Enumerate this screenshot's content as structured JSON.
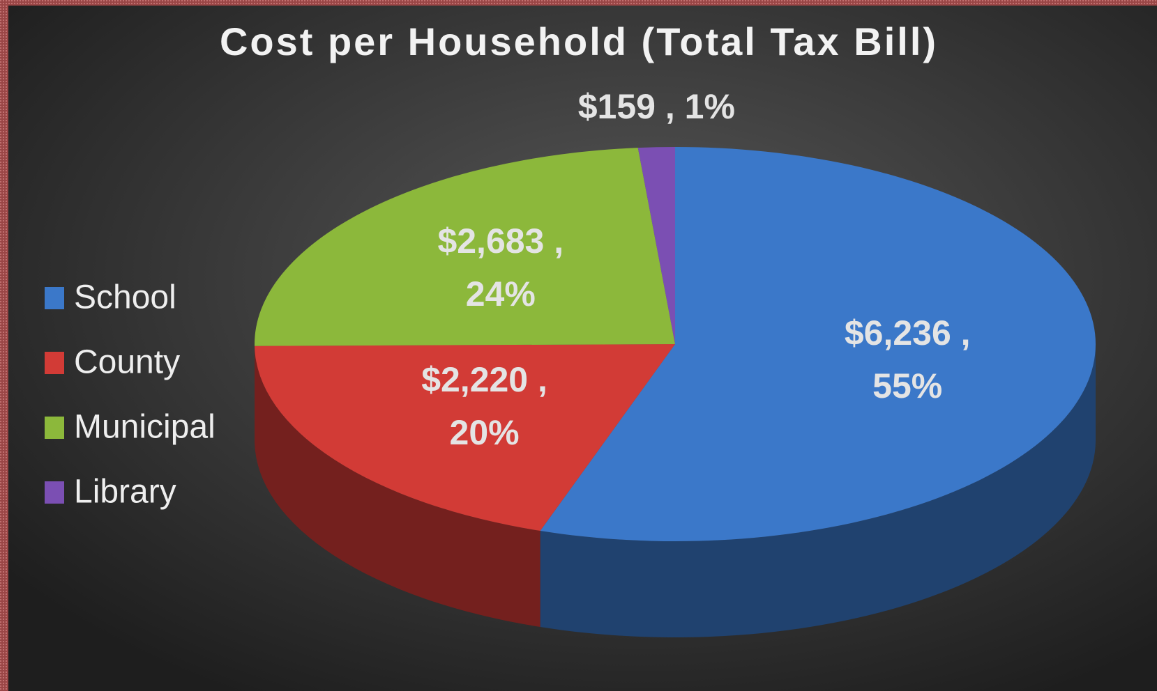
{
  "chart_data": {
    "type": "pie",
    "title": "Cost per Household (Total Tax Bill)",
    "categories": [
      "School",
      "County",
      "Municipal",
      "Library"
    ],
    "values": [
      6236,
      2220,
      2683,
      159
    ],
    "value_labels": [
      [
        "$6,236 ,",
        "55%"
      ],
      [
        "$2,220 ,",
        "20%"
      ],
      [
        "$2,683 ,",
        "24%"
      ],
      [
        "$159 , 1%"
      ]
    ],
    "colors": [
      "#3b78c9",
      "#d23b36",
      "#8cb83b",
      "#7b4fb3"
    ],
    "legend": "left"
  }
}
